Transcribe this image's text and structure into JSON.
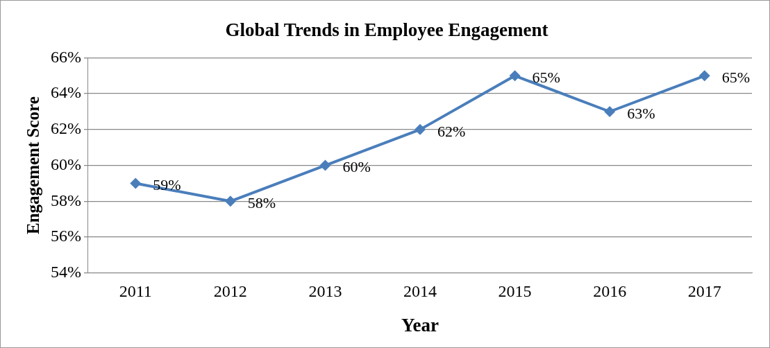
{
  "chart_data": {
    "type": "line",
    "title": "Global Trends in Employee Engagement",
    "xlabel": "Year",
    "ylabel": "Engagement Score",
    "categories": [
      "2011",
      "2012",
      "2013",
      "2014",
      "2015",
      "2016",
      "2017"
    ],
    "series": [
      {
        "color": "#4a7ebb",
        "values": [
          59,
          58,
          60,
          62,
          65,
          63,
          65
        ],
        "value_labels": [
          "59%",
          "58%",
          "60%",
          "62%",
          "65%",
          "63%",
          "65%"
        ]
      }
    ],
    "ylim": [
      54,
      66
    ],
    "yticks": [
      {
        "value": 54,
        "label": "54%"
      },
      {
        "value": 56,
        "label": "56%"
      },
      {
        "value": 58,
        "label": "58%"
      },
      {
        "value": 60,
        "label": "60%"
      },
      {
        "value": 62,
        "label": "62%"
      },
      {
        "value": 64,
        "label": "64%"
      },
      {
        "value": 66,
        "label": "66%"
      }
    ],
    "grid": "y",
    "legend": false,
    "marker": "diamond",
    "line_style": "solid"
  }
}
